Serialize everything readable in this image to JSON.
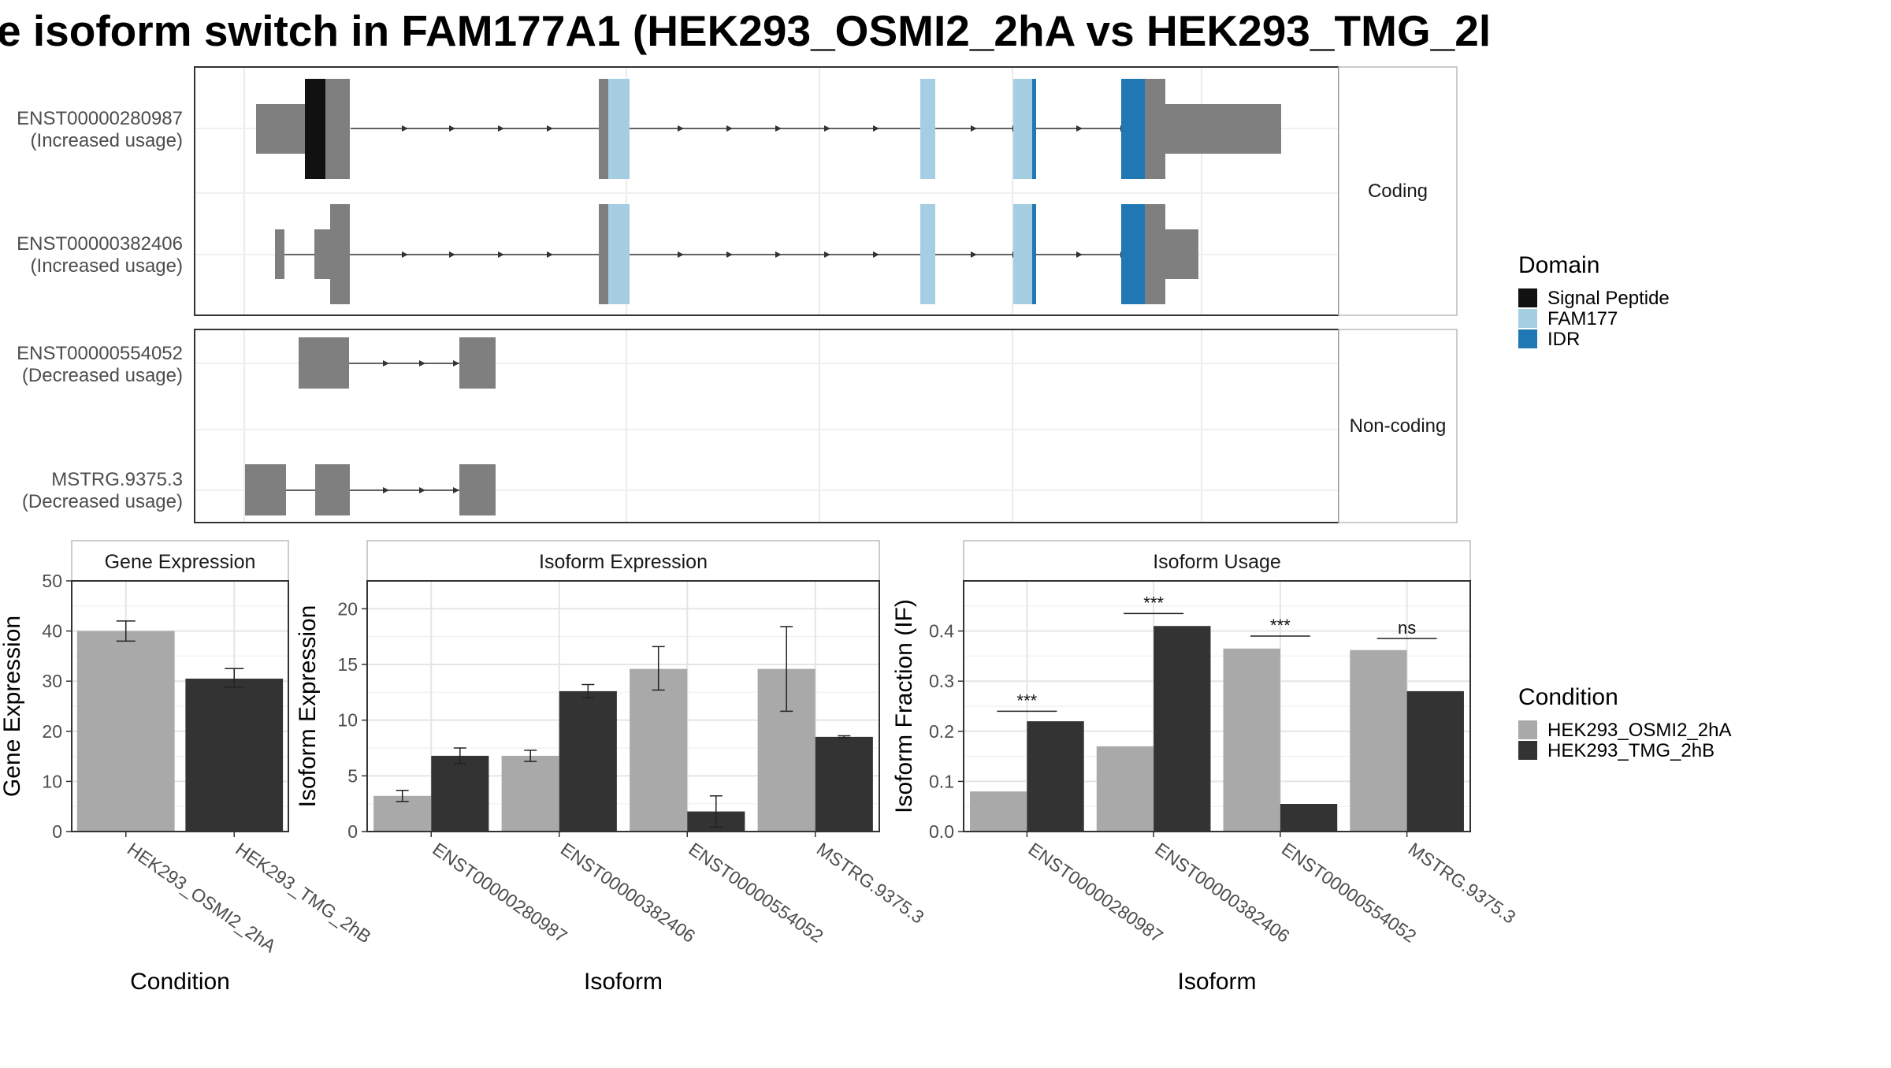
{
  "title": "e isoform switch in FAM177A1 (HEK293_OSMI2_2hA vs HEK293_TMG_2l",
  "colors": {
    "exon": "#7f7f7f",
    "signal_peptide": "#111111",
    "fam177": "#a6cee3",
    "idr": "#1f78b4",
    "cond1": "#a9a9a9",
    "cond2": "#333333"
  },
  "transcripts": {
    "facets": [
      "Coding",
      "Non-coding"
    ],
    "coding": [
      {
        "id": "ENST00000280987",
        "note": "(Increased usage)"
      },
      {
        "id": "ENST00000382406",
        "note": "(Increased usage)"
      }
    ],
    "noncoding": [
      {
        "id": "ENST00000554052",
        "note": "(Decreased usage)"
      },
      {
        "id": "MSTRG.9375.3",
        "note": "(Decreased usage)"
      }
    ]
  },
  "legend_domain": {
    "title": "Domain",
    "items": [
      {
        "label": "Signal Peptide",
        "color": "#111111"
      },
      {
        "label": "FAM177",
        "color": "#a6cee3"
      },
      {
        "label": "IDR",
        "color": "#1f78b4"
      }
    ]
  },
  "legend_condition": {
    "title": "Condition",
    "items": [
      {
        "label": "HEK293_OSMI2_2hA",
        "color": "#a9a9a9"
      },
      {
        "label": "HEK293_TMG_2hB",
        "color": "#333333"
      }
    ]
  },
  "chart_data": [
    {
      "type": "bar",
      "title": "Gene Expression",
      "xlabel": "Condition",
      "ylabel": "Gene Expression",
      "ylim": [
        0,
        50
      ],
      "yticks": [
        0,
        10,
        20,
        30,
        40,
        50
      ],
      "categories": [
        "HEK293_OSMI2_2hA",
        "HEK293_TMG_2hB"
      ],
      "values": [
        40.0,
        30.5
      ],
      "errors": [
        [
          38.0,
          42.0
        ],
        [
          28.8,
          32.5
        ]
      ]
    },
    {
      "type": "bar",
      "title": "Isoform Expression",
      "xlabel": "Isoform",
      "ylabel": "Isoform Expression",
      "ylim": [
        0,
        22.5
      ],
      "yticks": [
        0,
        5,
        10,
        15,
        20
      ],
      "categories": [
        "ENST00000280987",
        "ENST00000382406",
        "ENST00000554052",
        "MSTRG.9375.3"
      ],
      "series": [
        {
          "name": "HEK293_OSMI2_2hA",
          "values": [
            3.2,
            6.8,
            14.6,
            14.6
          ],
          "errors": [
            [
              2.7,
              3.7
            ],
            [
              6.3,
              7.3
            ],
            [
              12.7,
              16.6
            ],
            [
              10.8,
              18.4
            ]
          ]
        },
        {
          "name": "HEK293_TMG_2hB",
          "values": [
            6.8,
            12.6,
            1.8,
            8.5
          ],
          "errors": [
            [
              6.1,
              7.5
            ],
            [
              12.0,
              13.2
            ],
            [
              0.4,
              3.2
            ],
            [
              8.4,
              8.6
            ]
          ]
        }
      ]
    },
    {
      "type": "bar",
      "title": "Isoform Usage",
      "xlabel": "Isoform",
      "ylabel": "Isoform Fraction (IF)",
      "ylim": [
        0,
        0.5
      ],
      "yticks": [
        0.0,
        0.1,
        0.2,
        0.3,
        0.4
      ],
      "ytick_labels": [
        "0.0",
        "0.1",
        "0.2",
        "0.3",
        "0.4"
      ],
      "categories": [
        "ENST00000280987",
        "ENST00000382406",
        "ENST00000554052",
        "MSTRG.9375.3"
      ],
      "series": [
        {
          "name": "HEK293_OSMI2_2hA",
          "values": [
            0.08,
            0.17,
            0.365,
            0.362
          ]
        },
        {
          "name": "HEK293_TMG_2hB",
          "values": [
            0.22,
            0.41,
            0.055,
            0.28
          ]
        }
      ],
      "significance": [
        "***",
        "***",
        "***",
        "ns"
      ],
      "sig_levels": [
        0.24,
        0.435,
        0.39,
        0.385
      ]
    }
  ]
}
